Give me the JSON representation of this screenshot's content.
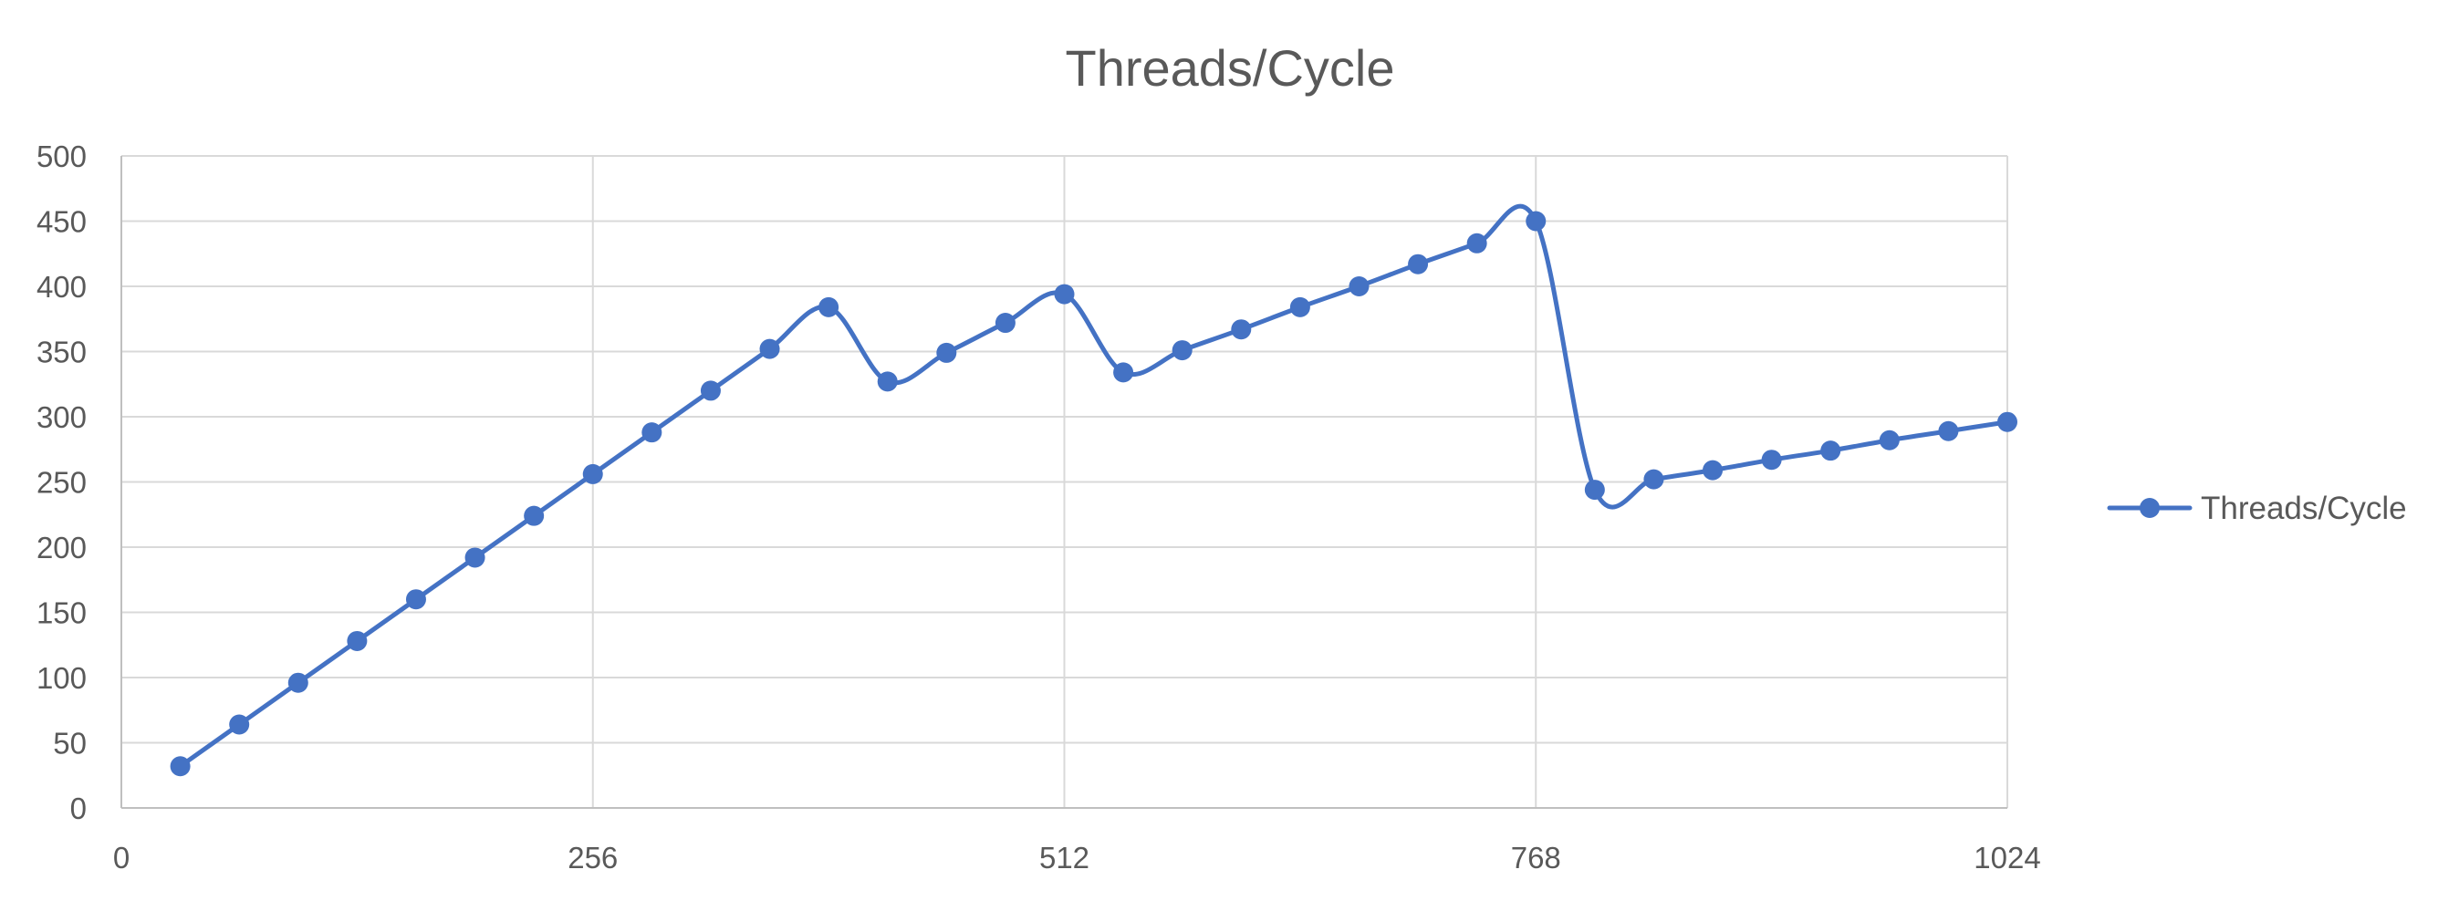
{
  "chart_data": {
    "type": "line",
    "title": "Threads/Cycle",
    "xlabel": "",
    "ylabel": "",
    "xlim": [
      0,
      1024
    ],
    "ylim": [
      0,
      500
    ],
    "x_ticks": [
      0,
      256,
      512,
      768,
      1024
    ],
    "y_ticks": [
      0,
      50,
      100,
      150,
      200,
      250,
      300,
      350,
      400,
      450,
      500
    ],
    "grid": true,
    "smooth": true,
    "legend": "right",
    "series": [
      {
        "name": "Threads/Cycle",
        "color": "#4472c4",
        "marker": "circle",
        "x": [
          32,
          64,
          96,
          128,
          160,
          192,
          224,
          256,
          288,
          320,
          352,
          384,
          416,
          448,
          480,
          512,
          544,
          576,
          608,
          640,
          672,
          704,
          736,
          768,
          800,
          832,
          864,
          896,
          928,
          960,
          992,
          1024
        ],
        "values": [
          32,
          64,
          96,
          128,
          160,
          192,
          224,
          256,
          288,
          320,
          352,
          384,
          327,
          349,
          372,
          394,
          334,
          351,
          367,
          384,
          400,
          417,
          433,
          450,
          244,
          252,
          259,
          267,
          274,
          282,
          289,
          296
        ]
      }
    ]
  }
}
